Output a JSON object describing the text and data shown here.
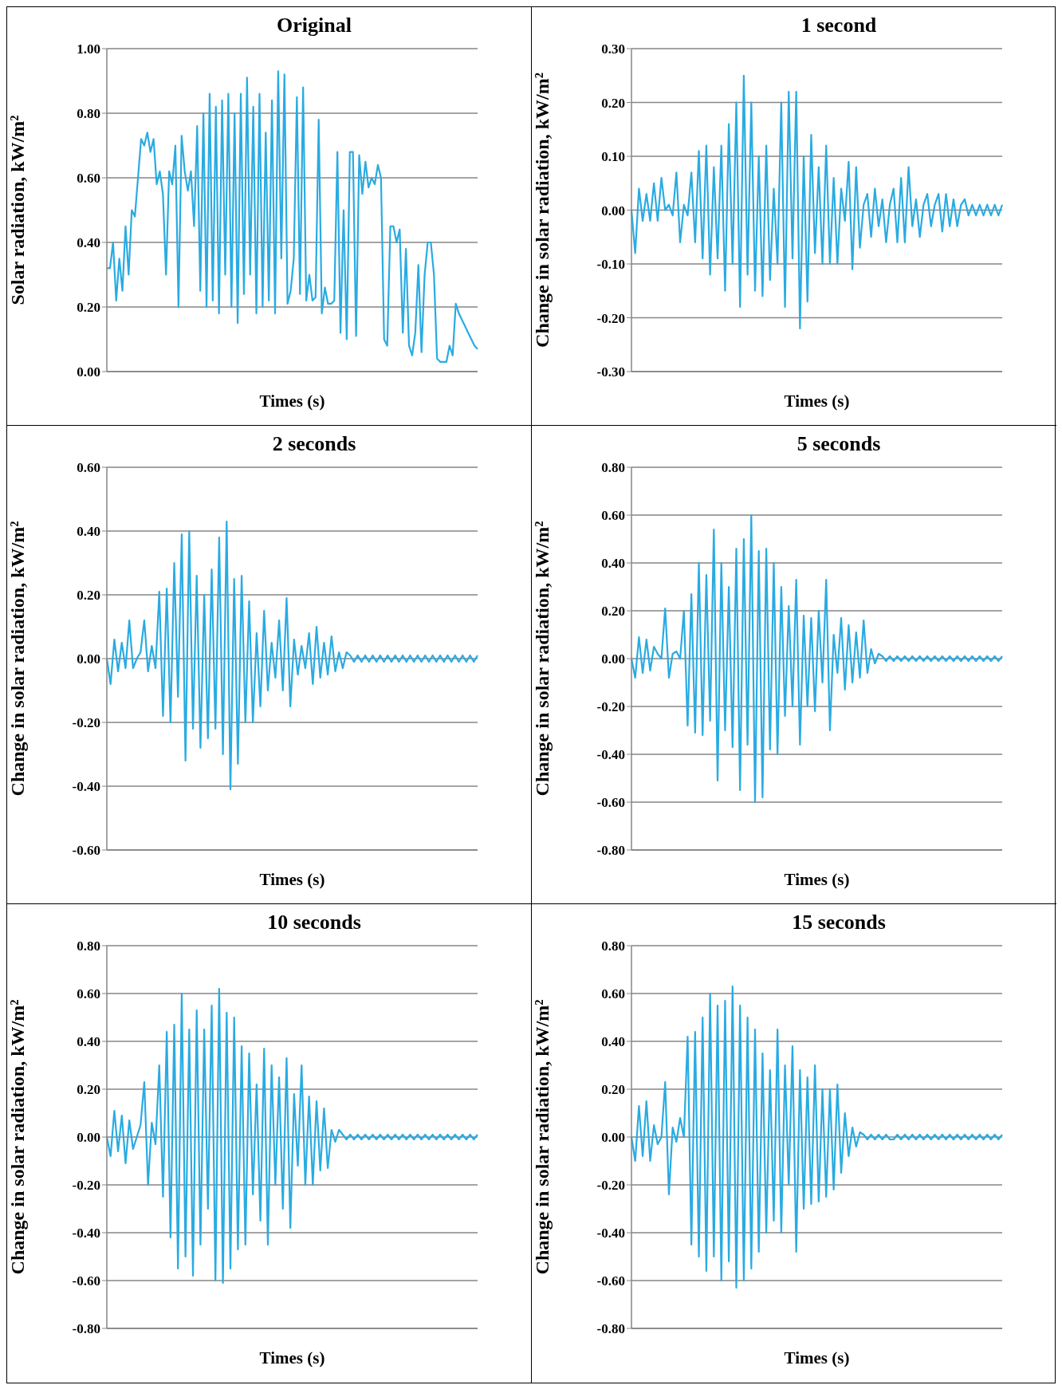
{
  "chart_data": [
    {
      "type": "line",
      "title": "Original",
      "xlabel": "Times (s)",
      "ylabel": "Solar radiation, kW/m²",
      "tick_labels": "y",
      "grid": "y",
      "ylim": [
        0,
        1
      ],
      "yticks": [
        {
          "value": 0,
          "label": "0.00"
        },
        {
          "value": 0.2,
          "label": "0.20"
        },
        {
          "value": 0.4,
          "label": "0.40"
        },
        {
          "value": 0.6,
          "label": "0.60"
        },
        {
          "value": 0.8,
          "label": "0.80"
        },
        {
          "value": 1,
          "label": "1.00"
        }
      ],
      "categories": [
        null,
        null,
        null,
        null,
        null,
        null,
        null,
        null,
        null,
        null,
        null,
        null,
        null,
        null,
        null,
        null,
        null,
        null,
        null,
        null,
        null,
        null,
        null,
        null,
        null,
        null,
        null,
        null,
        null,
        null,
        null,
        null,
        null,
        null,
        null,
        null,
        null,
        null,
        null,
        null,
        null,
        null,
        null,
        null,
        null,
        null,
        null,
        null,
        null,
        null,
        null,
        null,
        null,
        null,
        null,
        null,
        null,
        null,
        null,
        null,
        null,
        null,
        null,
        null,
        null,
        null,
        null,
        null,
        null,
        null,
        null,
        null,
        null,
        null,
        null,
        null,
        null,
        null,
        null,
        null,
        null,
        null,
        null,
        null,
        null,
        null,
        null,
        null,
        null,
        null,
        null,
        null,
        null,
        null,
        null,
        null,
        null,
        null,
        null,
        null,
        null,
        null,
        null,
        null,
        null,
        null,
        null,
        null,
        null,
        null,
        null,
        null,
        null,
        null,
        null,
        null,
        null,
        null,
        null,
        null
      ],
      "series": [
        {
          "color": "#29abe2",
          "values": [
            0.32,
            0.32,
            0.4,
            0.22,
            0.35,
            0.25,
            0.45,
            0.3,
            0.5,
            0.48,
            0.6,
            0.72,
            0.7,
            0.74,
            0.68,
            0.72,
            0.58,
            0.62,
            0.55,
            0.3,
            0.62,
            0.58,
            0.7,
            0.2,
            0.73,
            0.62,
            0.56,
            0.62,
            0.45,
            0.76,
            0.25,
            0.8,
            0.2,
            0.86,
            0.22,
            0.82,
            0.18,
            0.84,
            0.3,
            0.86,
            0.2,
            0.8,
            0.15,
            0.86,
            0.24,
            0.91,
            0.3,
            0.82,
            0.18,
            0.86,
            0.2,
            0.74,
            0.22,
            0.84,
            0.18,
            0.93,
            0.35,
            0.92,
            0.21,
            0.25,
            0.35,
            0.85,
            0.24,
            0.88,
            0.22,
            0.3,
            0.22,
            0.23,
            0.78,
            0.18,
            0.26,
            0.21,
            0.21,
            0.22,
            0.68,
            0.12,
            0.5,
            0.1,
            0.68,
            0.68,
            0.11,
            0.67,
            0.55,
            0.65,
            0.57,
            0.6,
            0.58,
            0.64,
            0.6,
            0.1,
            0.08,
            0.45,
            0.45,
            0.4,
            0.44,
            0.12,
            0.38,
            0.08,
            0.05,
            0.12,
            0.33,
            0.06,
            0.3,
            0.4,
            0.4,
            0.3,
            0.04,
            0.03,
            0.03,
            0.03,
            0.08,
            0.05,
            0.21,
            0.18,
            0.16,
            0.14,
            0.12,
            0.1,
            0.08,
            0.07
          ]
        }
      ]
    },
    {
      "type": "line",
      "title": "1 second",
      "xlabel": "Times (s)",
      "ylabel": "Change in solar radiation, kW/m²",
      "tick_labels": "y",
      "grid": "y",
      "ylim": [
        -0.3,
        0.3
      ],
      "yticks": [
        {
          "value": -0.3,
          "label": "-0.30"
        },
        {
          "value": -0.2,
          "label": "-0.20"
        },
        {
          "value": -0.1,
          "label": "-0.10"
        },
        {
          "value": 0,
          "label": "0.00"
        },
        {
          "value": 0.1,
          "label": "0.10"
        },
        {
          "value": 0.2,
          "label": "0.20"
        },
        {
          "value": 0.3,
          "label": "0.30"
        }
      ],
      "categories": [
        null,
        null,
        null,
        null,
        null,
        null,
        null,
        null,
        null,
        null,
        null,
        null,
        null,
        null,
        null,
        null,
        null,
        null,
        null,
        null,
        null,
        null,
        null,
        null,
        null,
        null,
        null,
        null,
        null,
        null,
        null,
        null,
        null,
        null,
        null,
        null,
        null,
        null,
        null,
        null,
        null,
        null,
        null,
        null,
        null,
        null,
        null,
        null,
        null,
        null,
        null,
        null,
        null,
        null,
        null,
        null,
        null,
        null,
        null,
        null,
        null,
        null,
        null,
        null,
        null,
        null,
        null,
        null,
        null,
        null,
        null,
        null,
        null,
        null,
        null,
        null,
        null,
        null,
        null,
        null,
        null,
        null,
        null,
        null,
        null,
        null,
        null,
        null,
        null,
        null,
        null,
        null,
        null,
        null,
        null,
        null,
        null,
        null,
        null,
        null
      ],
      "series": [
        {
          "color": "#29abe2",
          "values": [
            0,
            -0.08,
            0.04,
            -0.02,
            0.03,
            -0.02,
            0.05,
            -0.02,
            0.06,
            0,
            0.01,
            -0.01,
            0.07,
            -0.06,
            0.01,
            -0.01,
            0.07,
            -0.06,
            0.11,
            -0.09,
            0.12,
            -0.12,
            0.08,
            -0.09,
            0.12,
            -0.15,
            0.16,
            -0.1,
            0.2,
            -0.18,
            0.25,
            -0.12,
            0.2,
            -0.15,
            0.1,
            -0.16,
            0.12,
            -0.13,
            0.04,
            -0.1,
            0.2,
            -0.18,
            0.22,
            -0.09,
            0.22,
            -0.22,
            0.1,
            -0.17,
            0.14,
            -0.08,
            0.08,
            -0.1,
            0.12,
            -0.1,
            0.06,
            -0.1,
            0.04,
            -0.02,
            0.09,
            -0.11,
            0.08,
            -0.07,
            0.01,
            0.03,
            -0.05,
            0.04,
            -0.03,
            0.02,
            -0.06,
            0.01,
            0.04,
            -0.06,
            0.06,
            -0.06,
            0.08,
            -0.03,
            0.02,
            -0.05,
            0.01,
            0.03,
            -0.03,
            0.01,
            0.03,
            -0.04,
            0.03,
            -0.03,
            0.02,
            -0.03,
            0.01,
            0.02,
            -0.01,
            0.01,
            -0.01,
            0.01,
            -0.01,
            0.01,
            -0.01,
            0.01,
            -0.01,
            0.01
          ]
        }
      ]
    },
    {
      "type": "line",
      "title": "2 seconds",
      "xlabel": "Times (s)",
      "ylabel": "Change in solar radiation, kW/m²",
      "tick_labels": "y",
      "grid": "y",
      "ylim": [
        -0.6,
        0.6
      ],
      "yticks": [
        {
          "value": -0.6,
          "label": "-0.60"
        },
        {
          "value": -0.4,
          "label": "-0.40"
        },
        {
          "value": -0.2,
          "label": "-0.20"
        },
        {
          "value": 0,
          "label": "0.00"
        },
        {
          "value": 0.2,
          "label": "0.20"
        },
        {
          "value": 0.4,
          "label": "0.40"
        },
        {
          "value": 0.6,
          "label": "0.60"
        }
      ],
      "categories": [
        null,
        null,
        null,
        null,
        null,
        null,
        null,
        null,
        null,
        null,
        null,
        null,
        null,
        null,
        null,
        null,
        null,
        null,
        null,
        null,
        null,
        null,
        null,
        null,
        null,
        null,
        null,
        null,
        null,
        null,
        null,
        null,
        null,
        null,
        null,
        null,
        null,
        null,
        null,
        null,
        null,
        null,
        null,
        null,
        null,
        null,
        null,
        null,
        null,
        null,
        null,
        null,
        null,
        null,
        null,
        null,
        null,
        null,
        null,
        null,
        null,
        null,
        null,
        null,
        null,
        null,
        null,
        null,
        null,
        null,
        null,
        null,
        null,
        null,
        null,
        null,
        null,
        null,
        null,
        null,
        null,
        null,
        null,
        null,
        null,
        null,
        null,
        null,
        null,
        null,
        null,
        null,
        null,
        null,
        null,
        null,
        null,
        null,
        null,
        null
      ],
      "series": [
        {
          "color": "#29abe2",
          "values": [
            0,
            -0.08,
            0.06,
            -0.04,
            0.05,
            -0.03,
            0.12,
            -0.03,
            0,
            0.02,
            0.12,
            -0.04,
            0.04,
            -0.03,
            0.21,
            -0.18,
            0.22,
            -0.2,
            0.3,
            -0.12,
            0.39,
            -0.32,
            0.4,
            -0.22,
            0.26,
            -0.28,
            0.2,
            -0.25,
            0.28,
            -0.22,
            0.38,
            -0.3,
            0.43,
            -0.41,
            0.25,
            -0.33,
            0.26,
            -0.2,
            0.18,
            -0.2,
            0.08,
            -0.15,
            0.15,
            -0.1,
            0.05,
            -0.06,
            0.12,
            -0.1,
            0.19,
            -0.15,
            0.06,
            -0.05,
            0.04,
            -0.03,
            0.08,
            -0.08,
            0.1,
            -0.06,
            0.05,
            -0.05,
            0.07,
            -0.04,
            0.02,
            -0.03,
            0.02,
            0.01,
            -0.01,
            0.01,
            -0.01,
            0.01,
            -0.01,
            0.01,
            -0.01,
            0.01,
            -0.01,
            0.01,
            -0.01,
            0.01,
            -0.01,
            0.01,
            -0.01,
            0.01,
            -0.01,
            0.01,
            -0.01,
            0.01,
            -0.01,
            0.01,
            -0.01,
            0.01,
            -0.01,
            0.01,
            -0.01,
            0.01,
            -0.01,
            0.01,
            -0.01,
            0.01,
            -0.01,
            0.01
          ]
        }
      ]
    },
    {
      "type": "line",
      "title": "5 seconds",
      "xlabel": "Times (s)",
      "ylabel": "Change in solar radiation, kW/m²",
      "tick_labels": "y",
      "grid": "y",
      "ylim": [
        -0.8,
        0.8
      ],
      "yticks": [
        {
          "value": -0.8,
          "label": "-0.80"
        },
        {
          "value": -0.6,
          "label": "-0.60"
        },
        {
          "value": -0.4,
          "label": "-0.40"
        },
        {
          "value": -0.2,
          "label": "-0.20"
        },
        {
          "value": 0,
          "label": "0.00"
        },
        {
          "value": 0.2,
          "label": "0.20"
        },
        {
          "value": 0.4,
          "label": "0.40"
        },
        {
          "value": 0.6,
          "label": "0.60"
        },
        {
          "value": 0.8,
          "label": "0.80"
        }
      ],
      "categories": [
        null,
        null,
        null,
        null,
        null,
        null,
        null,
        null,
        null,
        null,
        null,
        null,
        null,
        null,
        null,
        null,
        null,
        null,
        null,
        null,
        null,
        null,
        null,
        null,
        null,
        null,
        null,
        null,
        null,
        null,
        null,
        null,
        null,
        null,
        null,
        null,
        null,
        null,
        null,
        null,
        null,
        null,
        null,
        null,
        null,
        null,
        null,
        null,
        null,
        null,
        null,
        null,
        null,
        null,
        null,
        null,
        null,
        null,
        null,
        null,
        null,
        null,
        null,
        null,
        null,
        null,
        null,
        null,
        null,
        null,
        null,
        null,
        null,
        null,
        null,
        null,
        null,
        null,
        null,
        null,
        null,
        null,
        null,
        null,
        null,
        null,
        null,
        null,
        null,
        null,
        null,
        null,
        null,
        null,
        null,
        null,
        null,
        null,
        null,
        null
      ],
      "series": [
        {
          "color": "#29abe2",
          "values": [
            0,
            -0.08,
            0.09,
            -0.06,
            0.08,
            -0.05,
            0.05,
            0.02,
            0,
            0.21,
            -0.08,
            0.02,
            0.03,
            0,
            0.2,
            -0.28,
            0.27,
            -0.31,
            0.4,
            -0.32,
            0.35,
            -0.26,
            0.54,
            -0.51,
            0.4,
            -0.3,
            0.3,
            -0.37,
            0.46,
            -0.55,
            0.5,
            -0.36,
            0.6,
            -0.6,
            0.45,
            -0.58,
            0.46,
            -0.38,
            0.4,
            -0.4,
            0.3,
            -0.24,
            0.22,
            -0.2,
            0.33,
            -0.36,
            0.18,
            -0.2,
            0.17,
            -0.22,
            0.2,
            -0.1,
            0.33,
            -0.3,
            0.1,
            -0.06,
            0.17,
            -0.13,
            0.14,
            -0.1,
            0.11,
            -0.08,
            0.16,
            -0.06,
            0.04,
            -0.02,
            0.02,
            0.01,
            -0.01,
            0.01,
            -0.01,
            0.01,
            -0.01,
            0.01,
            -0.01,
            0.01,
            -0.01,
            0.01,
            -0.01,
            0.01,
            -0.01,
            0.01,
            -0.01,
            0.01,
            -0.01,
            0.01,
            -0.01,
            0.01,
            -0.01,
            0.01,
            -0.01,
            0.01,
            -0.01,
            0.01,
            -0.01,
            0.01,
            -0.01,
            0.01,
            -0.01,
            0.01
          ]
        }
      ]
    },
    {
      "type": "line",
      "title": "10 seconds",
      "xlabel": "Times (s)",
      "ylabel": "Change in solar radiation, kW/m²",
      "tick_labels": "y",
      "grid": "y",
      "ylim": [
        -0.8,
        0.8
      ],
      "yticks": [
        {
          "value": -0.8,
          "label": "-0.80"
        },
        {
          "value": -0.6,
          "label": "-0.60"
        },
        {
          "value": -0.4,
          "label": "-0.40"
        },
        {
          "value": -0.2,
          "label": "-0.20"
        },
        {
          "value": 0,
          "label": "0.00"
        },
        {
          "value": 0.2,
          "label": "0.20"
        },
        {
          "value": 0.4,
          "label": "0.40"
        },
        {
          "value": 0.6,
          "label": "0.60"
        },
        {
          "value": 0.8,
          "label": "0.80"
        }
      ],
      "categories": [
        null,
        null,
        null,
        null,
        null,
        null,
        null,
        null,
        null,
        null,
        null,
        null,
        null,
        null,
        null,
        null,
        null,
        null,
        null,
        null,
        null,
        null,
        null,
        null,
        null,
        null,
        null,
        null,
        null,
        null,
        null,
        null,
        null,
        null,
        null,
        null,
        null,
        null,
        null,
        null,
        null,
        null,
        null,
        null,
        null,
        null,
        null,
        null,
        null,
        null,
        null,
        null,
        null,
        null,
        null,
        null,
        null,
        null,
        null,
        null,
        null,
        null,
        null,
        null,
        null,
        null,
        null,
        null,
        null,
        null,
        null,
        null,
        null,
        null,
        null,
        null,
        null,
        null,
        null,
        null,
        null,
        null,
        null,
        null,
        null,
        null,
        null,
        null,
        null,
        null,
        null,
        null,
        null,
        null,
        null,
        null,
        null,
        null,
        null,
        null
      ],
      "series": [
        {
          "color": "#29abe2",
          "values": [
            0,
            -0.08,
            0.11,
            -0.06,
            0.09,
            -0.11,
            0.07,
            -0.05,
            0,
            0.05,
            0.23,
            -0.2,
            0.06,
            -0.03,
            0.3,
            -0.25,
            0.44,
            -0.42,
            0.47,
            -0.55,
            0.6,
            -0.5,
            0.45,
            -0.58,
            0.53,
            -0.45,
            0.45,
            -0.3,
            0.55,
            -0.6,
            0.62,
            -0.61,
            0.52,
            -0.55,
            0.5,
            -0.47,
            0.38,
            -0.45,
            0.35,
            -0.24,
            0.22,
            -0.35,
            0.37,
            -0.45,
            0.3,
            -0.2,
            0.25,
            -0.3,
            0.33,
            -0.38,
            0.18,
            -0.12,
            0.3,
            -0.2,
            0.17,
            -0.2,
            0.15,
            -0.14,
            0.12,
            -0.13,
            0.03,
            -0.02,
            0.03,
            0.01,
            -0.01,
            0.01,
            -0.01,
            0.01,
            -0.01,
            0.01,
            -0.01,
            0.01,
            -0.01,
            0.01,
            -0.01,
            0.01,
            -0.01,
            0.01,
            -0.01,
            0.01,
            -0.01,
            0.01,
            -0.01,
            0.01,
            -0.01,
            0.01,
            -0.01,
            0.01,
            -0.01,
            0.01,
            -0.01,
            0.01,
            -0.01,
            0.01,
            -0.01,
            0.01,
            -0.01,
            0.01,
            -0.01,
            0.01
          ]
        }
      ]
    },
    {
      "type": "line",
      "title": "15 seconds",
      "xlabel": "Times (s)",
      "ylabel": "Change in solar radiation, kW/m²",
      "tick_labels": "y",
      "grid": "y",
      "ylim": [
        -0.8,
        0.8
      ],
      "yticks": [
        {
          "value": -0.8,
          "label": "-0.80"
        },
        {
          "value": -0.6,
          "label": "-0.60"
        },
        {
          "value": -0.4,
          "label": "-0.40"
        },
        {
          "value": -0.2,
          "label": "-0.20"
        },
        {
          "value": 0,
          "label": "0.00"
        },
        {
          "value": 0.2,
          "label": "0.20"
        },
        {
          "value": 0.4,
          "label": "0.40"
        },
        {
          "value": 0.6,
          "label": "0.60"
        },
        {
          "value": 0.8,
          "label": "0.80"
        }
      ],
      "categories": [
        null,
        null,
        null,
        null,
        null,
        null,
        null,
        null,
        null,
        null,
        null,
        null,
        null,
        null,
        null,
        null,
        null,
        null,
        null,
        null,
        null,
        null,
        null,
        null,
        null,
        null,
        null,
        null,
        null,
        null,
        null,
        null,
        null,
        null,
        null,
        null,
        null,
        null,
        null,
        null,
        null,
        null,
        null,
        null,
        null,
        null,
        null,
        null,
        null,
        null,
        null,
        null,
        null,
        null,
        null,
        null,
        null,
        null,
        null,
        null,
        null,
        null,
        null,
        null,
        null,
        null,
        null,
        null,
        null,
        null,
        null,
        null,
        null,
        null,
        null,
        null,
        null,
        null,
        null,
        null,
        null,
        null,
        null,
        null,
        null,
        null,
        null,
        null,
        null,
        null,
        null,
        null,
        null,
        null,
        null,
        null,
        null,
        null,
        null,
        null
      ],
      "series": [
        {
          "color": "#29abe2",
          "values": [
            0,
            -0.1,
            0.13,
            -0.08,
            0.15,
            -0.1,
            0.05,
            -0.03,
            0,
            0.23,
            -0.24,
            0.04,
            -0.02,
            0.08,
            0,
            0.42,
            -0.45,
            0.44,
            -0.5,
            0.5,
            -0.56,
            0.6,
            -0.5,
            0.55,
            -0.6,
            0.57,
            -0.52,
            0.63,
            -0.63,
            0.55,
            -0.6,
            0.5,
            -0.55,
            0.45,
            -0.48,
            0.35,
            -0.4,
            0.28,
            -0.35,
            0.45,
            -0.4,
            0.3,
            -0.2,
            0.38,
            -0.48,
            0.28,
            -0.3,
            0.25,
            -0.28,
            0.3,
            -0.27,
            0.2,
            -0.25,
            0.2,
            -0.22,
            0.22,
            -0.15,
            0.1,
            -0.08,
            0.04,
            -0.04,
            0.02,
            0.01,
            -0.01,
            0.01,
            -0.01,
            0.01,
            -0.01,
            0.01,
            -0.01,
            -0.01,
            0.01,
            -0.01,
            0.01,
            -0.01,
            0.01,
            -0.01,
            0.01,
            -0.01,
            0.01,
            -0.01,
            0.01,
            -0.01,
            0.01,
            -0.01,
            0.01,
            -0.01,
            0.01,
            -0.01,
            0.01,
            -0.01,
            0.01,
            -0.01,
            0.01,
            -0.01,
            0.01,
            -0.01,
            0.01,
            -0.01,
            0.01
          ]
        }
      ]
    }
  ]
}
